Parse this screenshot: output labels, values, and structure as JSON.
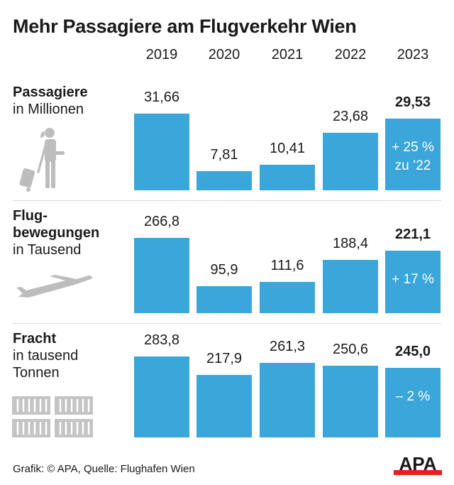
{
  "title": "Mehr Passagiere am Flugverkehr Wien",
  "footer": "Grafik: © APA, Quelle: Flughafen Wien",
  "logo": "APA",
  "colors": {
    "bar": "#3aa6d9",
    "icon": "#bdbdbd",
    "logo_red": "#e2231a"
  },
  "chart_data": {
    "type": "bar",
    "categories": [
      "2019",
      "2020",
      "2021",
      "2022",
      "2023"
    ],
    "panels": [
      {
        "title": "Passagiere",
        "subtitle": "in Millionen",
        "icon": "traveler-icon",
        "values": [
          31.66,
          7.81,
          10.41,
          23.68,
          29.53
        ],
        "labels": [
          "31,66",
          "7,81",
          "10,41",
          "23,68",
          "29,53"
        ],
        "note": [
          "+ 25 %",
          "zu ’22"
        ]
      },
      {
        "title": "Flug-",
        "title2": "bewegungen",
        "subtitle": "in Tausend",
        "icon": "airplane-icon",
        "values": [
          266.8,
          95.9,
          111.6,
          188.4,
          221.1
        ],
        "labels": [
          "266,8",
          "95,9",
          "111,6",
          "188,4",
          "221,1"
        ],
        "note": [
          "+ 17 %"
        ]
      },
      {
        "title": "Fracht",
        "subtitle": "in tausend",
        "subtitle2": "Tonnen",
        "icon": "cargo-containers-icon",
        "values": [
          283.8,
          217.9,
          261.3,
          250.6,
          245.0
        ],
        "labels": [
          "283,8",
          "217,9",
          "261,3",
          "250,6",
          "245,0"
        ],
        "note": [
          "– 2 %"
        ]
      }
    ]
  }
}
